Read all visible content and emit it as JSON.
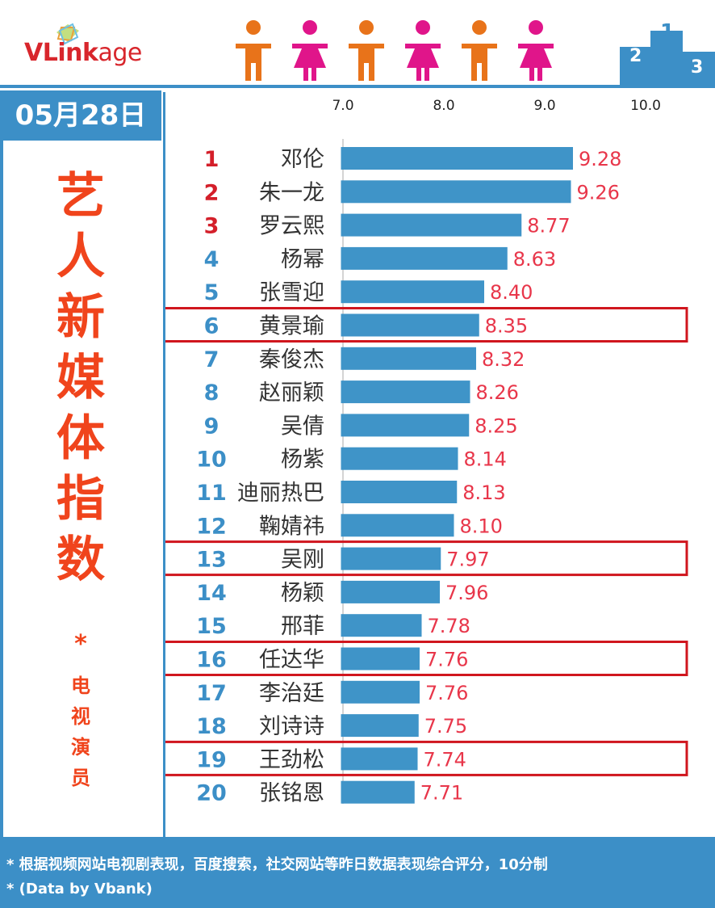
{
  "brand": {
    "logo_v": "VLink",
    "logo_rest": "age"
  },
  "date": "05月28日",
  "title_chars": [
    "艺",
    "人",
    "新",
    "媒",
    "体",
    "指",
    "数"
  ],
  "subtitle_star": "*",
  "subtitle_chars": [
    "电",
    "视",
    "演",
    "员"
  ],
  "footer": {
    "note1": "* 根据视频网站电视剧表现，百度搜索，社交网站等昨日数据表现综合评分，10分制",
    "note2": "* (Data by Vbank)"
  },
  "podium_labels": [
    "2",
    "1",
    "3"
  ],
  "colors": {
    "bar": "#3f94c8",
    "value_text": "#e8364a",
    "rank_top": "#d41f2a",
    "rank_other": "#3c8fc7",
    "highlight_box": "#d0161e",
    "header_blue": "#3c8fc7",
    "title_orange": "#f0441c",
    "person_orange": "#e8731a",
    "person_pink": "#e0158a"
  },
  "chart_data": {
    "type": "bar",
    "orientation": "horizontal",
    "xlim": [
      7.0,
      10.0
    ],
    "xticks": [
      "7.0",
      "8.0",
      "9.0",
      "10.0"
    ],
    "grid": false,
    "legend": "none",
    "highlighted_ranks": [
      6,
      13,
      16,
      19
    ],
    "rows": [
      {
        "rank": "1",
        "name": "邓伦",
        "value": 9.28,
        "label": "9.28"
      },
      {
        "rank": "2",
        "name": "朱一龙",
        "value": 9.26,
        "label": "9.26"
      },
      {
        "rank": "3",
        "name": "罗云熙",
        "value": 8.77,
        "label": "8.77"
      },
      {
        "rank": "4",
        "name": "杨幂",
        "value": 8.63,
        "label": "8.63"
      },
      {
        "rank": "5",
        "name": "张雪迎",
        "value": 8.4,
        "label": "8.40"
      },
      {
        "rank": "6",
        "name": "黄景瑜",
        "value": 8.35,
        "label": "8.35"
      },
      {
        "rank": "7",
        "name": "秦俊杰",
        "value": 8.32,
        "label": "8.32"
      },
      {
        "rank": "8",
        "name": "赵丽颖",
        "value": 8.26,
        "label": "8.26"
      },
      {
        "rank": "9",
        "name": "吴倩",
        "value": 8.25,
        "label": "8.25"
      },
      {
        "rank": "10",
        "name": "杨紫",
        "value": 8.14,
        "label": "8.14"
      },
      {
        "rank": "11",
        "name": "迪丽热巴",
        "value": 8.13,
        "label": "8.13"
      },
      {
        "rank": "12",
        "name": "鞠婧祎",
        "value": 8.1,
        "label": "8.10"
      },
      {
        "rank": "13",
        "name": "吴刚",
        "value": 7.97,
        "label": "7.97"
      },
      {
        "rank": "14",
        "name": "杨颖",
        "value": 7.96,
        "label": "7.96"
      },
      {
        "rank": "15",
        "name": "邢菲",
        "value": 7.78,
        "label": "7.78"
      },
      {
        "rank": "16",
        "name": "任达华",
        "value": 7.76,
        "label": "7.76"
      },
      {
        "rank": "17",
        "name": "李治廷",
        "value": 7.76,
        "label": "7.76"
      },
      {
        "rank": "18",
        "name": "刘诗诗",
        "value": 7.75,
        "label": "7.75"
      },
      {
        "rank": "19",
        "name": "王劲松",
        "value": 7.74,
        "label": "7.74"
      },
      {
        "rank": "20",
        "name": "张铭恩",
        "value": 7.71,
        "label": "7.71"
      }
    ]
  }
}
